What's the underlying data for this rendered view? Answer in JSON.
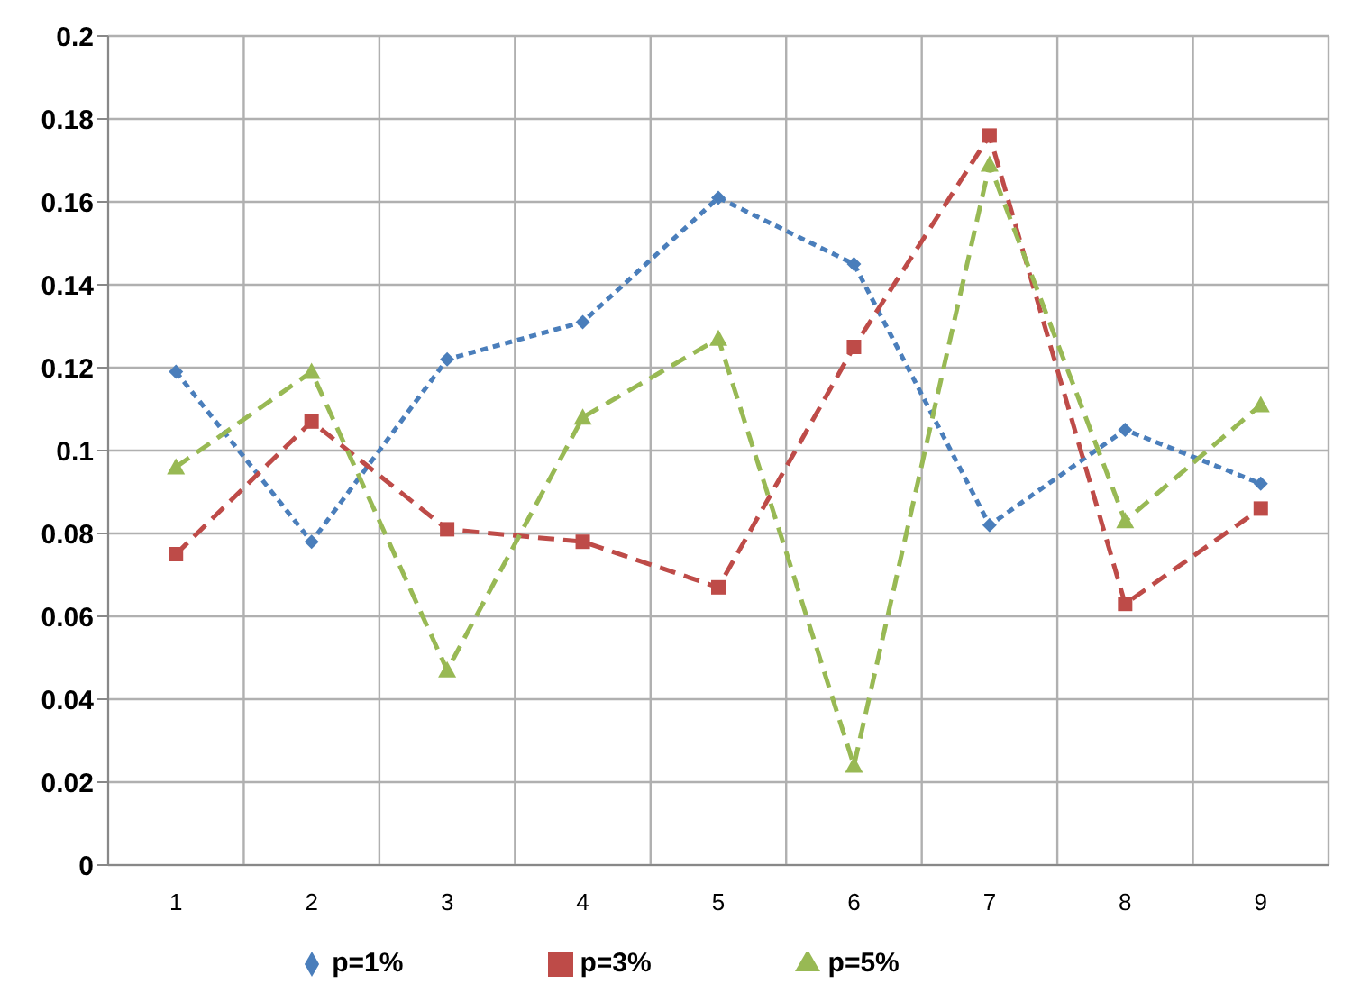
{
  "chart_data": {
    "type": "line",
    "categories": [
      "1",
      "2",
      "3",
      "4",
      "5",
      "6",
      "7",
      "8",
      "9"
    ],
    "series": [
      {
        "name": "p=1%",
        "color": "#4a7ebb",
        "marker": "diamond",
        "line_style": "dotted",
        "values": [
          0.119,
          0.078,
          0.122,
          0.131,
          0.161,
          0.145,
          0.082,
          0.105,
          0.092
        ]
      },
      {
        "name": "p=3%",
        "color": "#be4b48",
        "marker": "square",
        "line_style": "dashed",
        "values": [
          0.075,
          0.107,
          0.081,
          0.078,
          0.067,
          0.125,
          0.176,
          0.063,
          0.086
        ]
      },
      {
        "name": "p=5%",
        "color": "#98b954",
        "marker": "triangle",
        "line_style": "dashed",
        "values": [
          0.096,
          0.119,
          0.047,
          0.108,
          0.127,
          0.024,
          0.169,
          0.083,
          0.111
        ]
      }
    ],
    "ylim": [
      0,
      0.2
    ],
    "yticks": [
      0,
      0.02,
      0.04,
      0.06,
      0.08,
      0.1,
      0.12,
      0.14,
      0.16,
      0.18,
      0.2
    ],
    "grid": true,
    "legend": "bottom"
  }
}
